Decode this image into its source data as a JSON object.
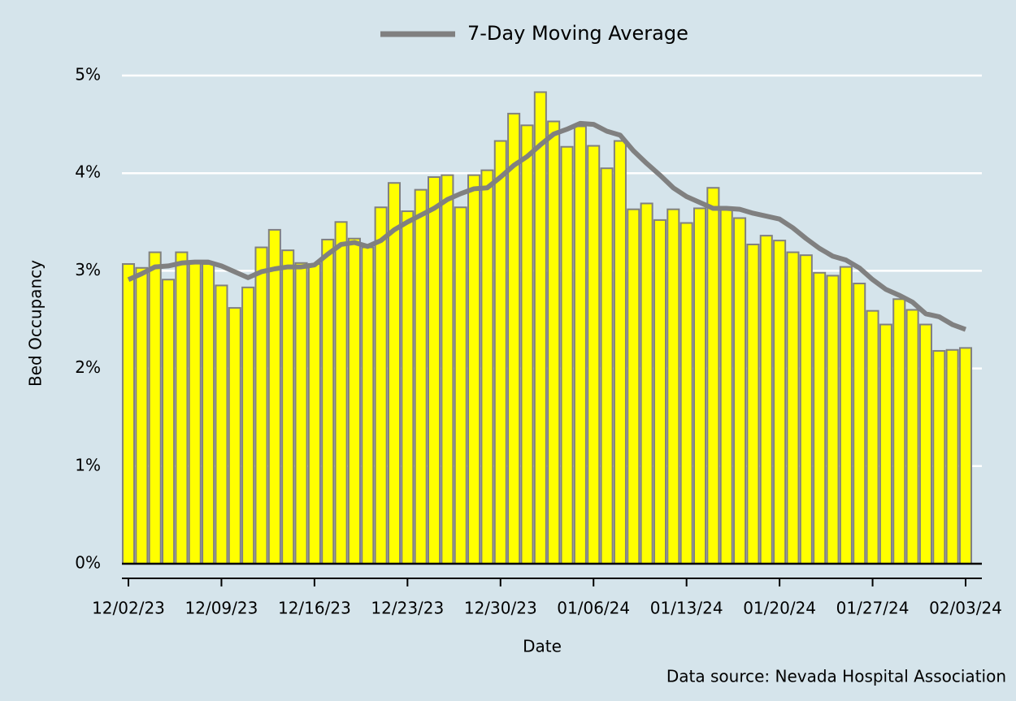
{
  "chart_data": {
    "type": "bar",
    "xlabel": "Date",
    "ylabel": "Bed Occupancy",
    "caption": "Data source: Nevada Hospital Association",
    "categories": [
      "12/02/23",
      null,
      null,
      null,
      null,
      null,
      null,
      "12/09/23",
      null,
      null,
      null,
      null,
      null,
      null,
      "12/16/23",
      null,
      null,
      null,
      null,
      null,
      null,
      "12/23/23",
      null,
      null,
      null,
      null,
      null,
      null,
      "12/30/23",
      null,
      null,
      null,
      null,
      null,
      null,
      "01/06/24",
      null,
      null,
      null,
      null,
      null,
      null,
      "01/13/24",
      null,
      null,
      null,
      null,
      null,
      null,
      "01/20/24",
      null,
      null,
      null,
      null,
      null,
      null,
      "01/27/24",
      null,
      null,
      null,
      null,
      null,
      null,
      "02/03/24"
    ],
    "series": [
      {
        "type": "bar",
        "color": "#ffff00",
        "edge_color": "#808080",
        "values": [
          3.07,
          3.03,
          3.19,
          2.91,
          3.19,
          3.09,
          3.07,
          2.85,
          2.62,
          2.83,
          3.24,
          3.42,
          3.21,
          3.08,
          3.07,
          3.32,
          3.5,
          3.33,
          3.24,
          3.65,
          3.9,
          3.61,
          3.83,
          3.96,
          3.98,
          3.65,
          3.98,
          4.03,
          4.33,
          4.61,
          4.49,
          4.83,
          4.53,
          4.27,
          4.48,
          4.28,
          4.05,
          4.33,
          3.63,
          3.69,
          3.52,
          3.63,
          3.49,
          3.64,
          3.85,
          3.63,
          3.54,
          3.27,
          3.36,
          3.31,
          3.19,
          3.16,
          2.98,
          2.95,
          3.04,
          2.87,
          2.59,
          2.45,
          2.71,
          2.6,
          2.45,
          2.18,
          2.19,
          2.21
        ]
      },
      {
        "type": "line",
        "name": "7-Day Moving Average",
        "color": "#808080",
        "values": [
          2.91,
          2.97,
          3.04,
          3.05,
          3.08,
          3.09,
          3.09,
          3.05,
          2.99,
          2.93,
          2.99,
          3.02,
          3.04,
          3.04,
          3.06,
          3.17,
          3.27,
          3.29,
          3.25,
          3.31,
          3.42,
          3.5,
          3.57,
          3.64,
          3.73,
          3.79,
          3.84,
          3.85,
          3.96,
          4.08,
          4.17,
          4.29,
          4.4,
          4.45,
          4.51,
          4.5,
          4.43,
          4.39,
          4.23,
          4.1,
          3.98,
          3.85,
          3.76,
          3.7,
          3.64,
          3.64,
          3.63,
          3.59,
          3.56,
          3.53,
          3.44,
          3.33,
          3.23,
          3.15,
          3.11,
          3.03,
          2.91,
          2.81,
          2.75,
          2.68,
          2.56,
          2.53,
          2.45,
          2.4
        ]
      }
    ],
    "ylim": [
      0,
      5.2
    ],
    "yticks": [
      {
        "value": 0,
        "label": "0%"
      },
      {
        "value": 1,
        "label": "1%"
      },
      {
        "value": 2,
        "label": "2%"
      },
      {
        "value": 3,
        "label": "3%"
      },
      {
        "value": 4,
        "label": "4%"
      },
      {
        "value": 5,
        "label": "5%"
      }
    ],
    "grid": true,
    "legend": "top",
    "background": "#d5e4eb"
  }
}
